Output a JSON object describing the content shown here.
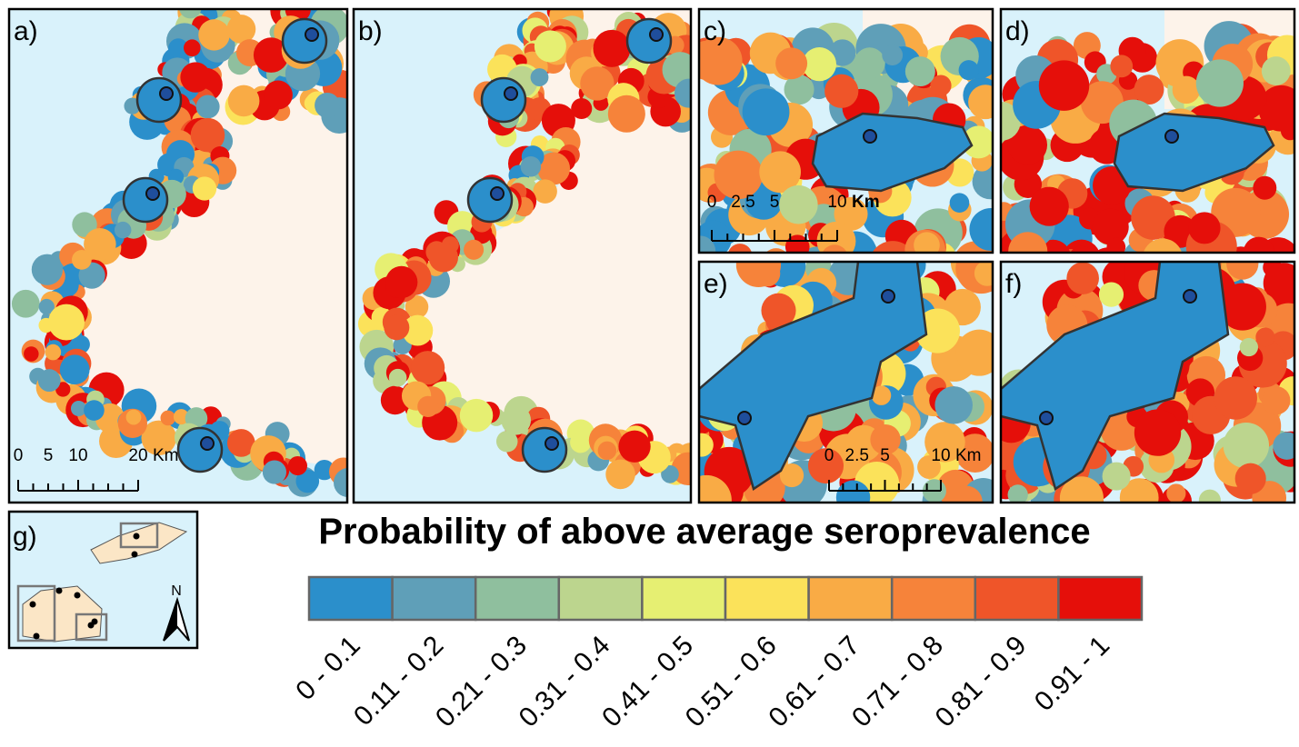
{
  "panels": [
    {
      "label": "a)"
    },
    {
      "label": "b)"
    },
    {
      "label": "c)"
    },
    {
      "label": "d)"
    },
    {
      "label": "e)"
    },
    {
      "label": "f)"
    }
  ],
  "scale_bars": [
    {
      "ticks": [
        "0",
        "5",
        "10",
        "20"
      ],
      "unit": "Km"
    },
    {
      "ticks": [
        "0",
        "2.5",
        "5",
        "10"
      ],
      "unit": "Km"
    },
    {
      "ticks": [
        "0",
        "2.5",
        "5",
        "10"
      ],
      "unit": "Km"
    }
  ],
  "legend": {
    "title": "Probability of above average seroprevalence",
    "items": [
      {
        "label": "0 - 0.1",
        "color": "#2b8fcb"
      },
      {
        "label": "0.11 - 0.2",
        "color": "#5f9fb8"
      },
      {
        "label": "0.21 - 0.3",
        "color": "#8fbf9e"
      },
      {
        "label": "0.31 - 0.4",
        "color": "#bcd58e"
      },
      {
        "label": "0.41 - 0.5",
        "color": "#e6ef72"
      },
      {
        "label": "0.51 - 0.6",
        "color": "#fbe25a"
      },
      {
        "label": "0.61 - 0.7",
        "color": "#f9ab45"
      },
      {
        "label": "0.71 - 0.8",
        "color": "#f6833a"
      },
      {
        "label": "0.81 - 0.9",
        "color": "#ef5529"
      },
      {
        "label": "0.91 - 1",
        "color": "#e50f0a"
      }
    ]
  },
  "inset": {
    "label": "g)",
    "north": "N"
  }
}
